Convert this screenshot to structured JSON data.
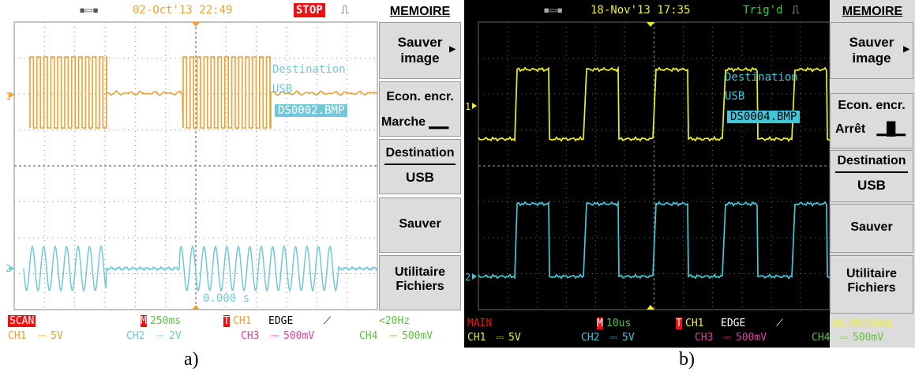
{
  "panel_a": {
    "usb_icon": "usb-icon",
    "datetime": "02-Oct'13 22:49",
    "status": "STOP",
    "status_color": "#ee1111",
    "menu_title": "MEMOIRE",
    "buttons": [
      {
        "l1": "Sauver",
        "l2": "image"
      },
      {
        "l1": "Econ. encr.",
        "l2": "Marche"
      },
      {
        "l1": "Destination",
        "l2": "USB"
      },
      {
        "l1": "Sauver",
        "l2": ""
      },
      {
        "l1": "Utilitaire",
        "l2": "Fichiers"
      }
    ],
    "overlay": {
      "dest_label": "Destination",
      "dest_value": "USB",
      "filename": "DS0002.BMP"
    },
    "trigger_time": "0.000 s",
    "ch1_marker": "1",
    "ch2_marker": "2",
    "bottom": {
      "mode": "SCAN",
      "timebase_marker": "M",
      "timebase": "250ms",
      "trig_marker": "T",
      "trig_src": "CH1",
      "trig_type": "EDGE",
      "freq": "<20Hz",
      "ch1": "CH1",
      "ch1_scale": "5V",
      "ch2": "CH2",
      "ch2_scale": "2V",
      "ch3": "CH3",
      "ch3_scale": "500mV",
      "ch4": "CH4",
      "ch4_scale": "500mV"
    },
    "colors": {
      "ch1": "#f0a030",
      "ch2": "#70c8d8",
      "ch3": "#e040a0",
      "ch4": "#60c040",
      "bg": "#ffffff",
      "grid": "#8a8a8a"
    },
    "caption": "a)"
  },
  "panel_b": {
    "usb_icon": "usb-icon",
    "datetime": "18-Nov'13 17:35",
    "status": "Trig'd",
    "status_color": "#30d040",
    "menu_title": "MEMOIRE",
    "buttons": [
      {
        "l1": "Sauver",
        "l2": "image"
      },
      {
        "l1": "Econ. encr.",
        "l2": "Arrêt"
      },
      {
        "l1": "Destination",
        "l2": "USB"
      },
      {
        "l1": "Sauver",
        "l2": ""
      },
      {
        "l1": "Utilitaire",
        "l2": "Fichiers"
      }
    ],
    "overlay": {
      "dest_label": "Destination",
      "dest_value": "USB",
      "filename": "DS0004.BMP"
    },
    "ch1_marker": "1",
    "ch2_marker": "2",
    "bottom": {
      "mode": "MAIN",
      "timebase_marker": "M",
      "timebase": "10us",
      "trig_marker": "T",
      "trig_src": "CH1",
      "trig_type": "EDGE",
      "freq": "50.0075kHz",
      "ch1": "CH1",
      "ch1_scale": "5V",
      "ch2": "CH2",
      "ch2_scale": "5V",
      "ch3": "CH3",
      "ch3_scale": "500mV",
      "ch4": "CH4",
      "ch4_scale": "500mV"
    },
    "colors": {
      "ch1": "#f0f020",
      "ch2": "#40c8d8",
      "ch3": "#e040a0",
      "ch4": "#60c040",
      "bg": "#000000",
      "grid": "#6a6a6a"
    },
    "caption": "b)"
  }
}
